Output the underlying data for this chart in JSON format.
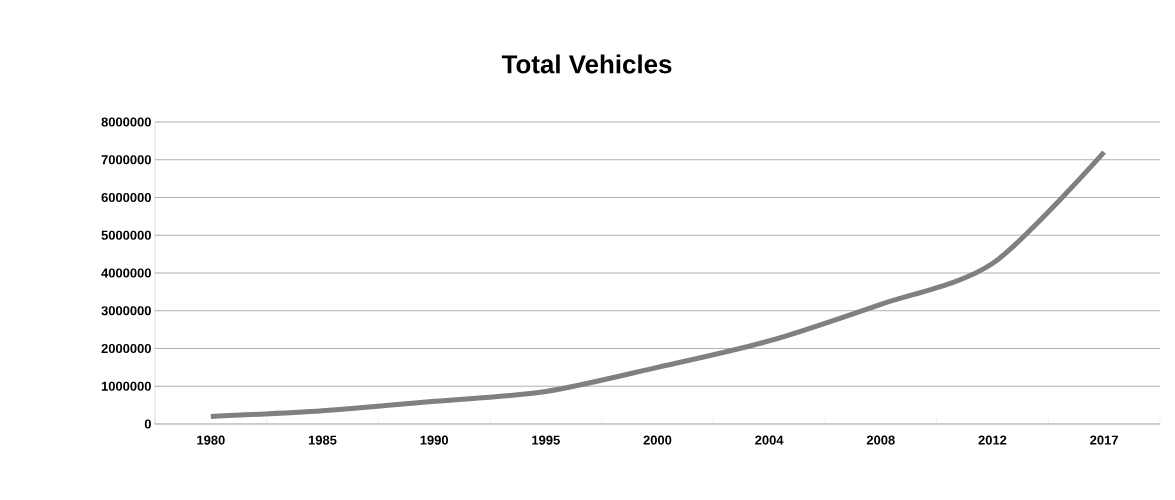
{
  "chart_data": {
    "type": "line",
    "title": "Total Vehicles",
    "categories": [
      "1980",
      "1985",
      "1990",
      "1995",
      "2000",
      "2004",
      "2008",
      "2012",
      "2017"
    ],
    "series": [
      {
        "color": "#808080",
        "values": [
          200000,
          350000,
          600000,
          860000,
          1500000,
          2200000,
          3170000,
          4250000,
          7200000
        ]
      }
    ],
    "ylim": [
      0,
      8000000
    ],
    "yticks": [
      0,
      1000000,
      2000000,
      3000000,
      4000000,
      5000000,
      6000000,
      7000000,
      8000000
    ],
    "grid": "y",
    "marker": "none",
    "line_style": "solid"
  }
}
